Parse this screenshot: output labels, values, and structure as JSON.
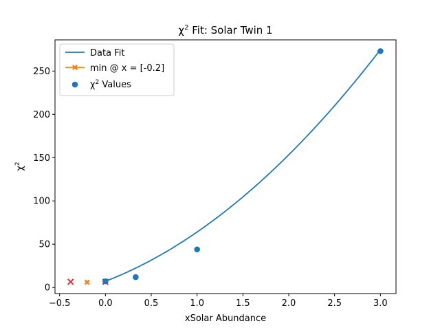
{
  "chart_data": {
    "type": "line",
    "title_prefix": "χ",
    "title_sup": "2",
    "title_suffix": " Fit: Solar Twin 1",
    "xlabel": "xSolar Abundance",
    "ylabel_prefix": "χ",
    "ylabel_sup": "2",
    "xlim": [
      -0.55,
      3.17
    ],
    "ylim": [
      -7,
      286
    ],
    "x_ticks": [
      -0.5,
      0.0,
      0.5,
      1.0,
      1.5,
      2.0,
      2.5,
      3.0
    ],
    "x_tick_labels": [
      "−0.5",
      "0.0",
      "0.5",
      "1.0",
      "1.5",
      "2.0",
      "2.5",
      "3.0"
    ],
    "y_ticks": [
      0,
      50,
      100,
      150,
      200,
      250
    ],
    "y_tick_labels": [
      "0",
      "50",
      "100",
      "150",
      "200",
      "250"
    ],
    "grid": false,
    "legend_position": "upper-left",
    "fit": {
      "name": "Data Fit",
      "color": "#1f77b4",
      "a": 16.15,
      "b": 40.74,
      "c": 7.2,
      "x_range": [
        0.0,
        3.0
      ]
    },
    "min_marker": {
      "name": "min @ x = [-0.2]",
      "color": "#ff7f0e",
      "x": -0.2,
      "y": 6.1
    },
    "chi2_values": {
      "name_prefix": "χ",
      "name_sup": "2",
      "name_suffix": " Values",
      "color": "#1f77b4",
      "points": [
        {
          "x": 0.0,
          "y": 7.2
        },
        {
          "x": 0.33,
          "y": 12.0
        },
        {
          "x": 1.0,
          "y": 44.0
        },
        {
          "x": 3.0,
          "y": 273.0
        }
      ]
    },
    "red_markers": {
      "color": "#e8141a",
      "points": [
        {
          "x": -0.38,
          "y": 6.6
        },
        {
          "x": 0.0,
          "y": 6.6
        }
      ]
    }
  }
}
